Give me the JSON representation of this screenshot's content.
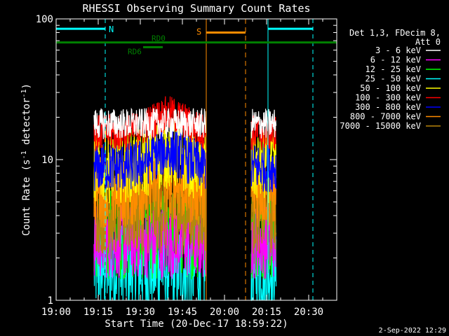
{
  "chart_data": {
    "type": "line",
    "title": "RHESSI Observing Summary Count Rates",
    "xlabel": "Start Time (20-Dec-17 18:59:22)",
    "ylabel": "Count Rate (s⁻¹ detector⁻¹)",
    "ylabel_parts": [
      "Count Rate (s",
      "-1",
      " detector",
      "-1",
      ")"
    ],
    "x_ticks": [
      "19:00",
      "19:15",
      "19:30",
      "19:45",
      "20:00",
      "20:15",
      "20:30"
    ],
    "x_tick_minutes": [
      0,
      15,
      30,
      45,
      60,
      75,
      90
    ],
    "xlim_minutes": [
      0,
      100
    ],
    "y_ticks": [
      "1",
      "10",
      "100"
    ],
    "y_tick_values": [
      1,
      10,
      100
    ],
    "ylim": [
      1,
      100
    ],
    "y_scale": "log",
    "legend_header": [
      "Det 1,3, FDecim 8,",
      "Att 0"
    ],
    "legend_placement": "right",
    "footer": "2-Sep-2022 12:29",
    "data_segments_minutes": [
      [
        13.5,
        53.5
      ],
      [
        69.5,
        78.5
      ]
    ],
    "series": [
      {
        "name": "3 - 6 keV",
        "color": "#ffffff",
        "base": 18.0,
        "spread": 0.05,
        "peak": 1.0
      },
      {
        "name": "6 - 12 keV",
        "color": "#ff00ff",
        "base": 2.6,
        "spread": 0.12,
        "peak": 1.0
      },
      {
        "name": "12 - 25 keV",
        "color": "#00ff00",
        "base": 3.0,
        "spread": 0.15,
        "peak": 1.0
      },
      {
        "name": "25 - 50 keV",
        "color": "#00ffff",
        "base": 1.7,
        "spread": 0.15,
        "peak": 1.0
      },
      {
        "name": "50 - 100 keV",
        "color": "#ffff00",
        "base": 9.0,
        "spread": 0.12,
        "peak": 1.25
      },
      {
        "name": "100 - 300 keV",
        "color": "#ff0000",
        "base": 15.5,
        "spread": 0.06,
        "peak": 1.35
      },
      {
        "name": "300 - 800 keV",
        "color": "#0000ff",
        "base": 8.8,
        "spread": 0.08,
        "peak": 1.3
      },
      {
        "name": "800 - 7000 keV",
        "color": "#ff8c00",
        "base": 6.0,
        "spread": 0.12,
        "peak": 1.15
      },
      {
        "name": "7000 - 15000 keV",
        "color": "#b8860b",
        "base": 4.5,
        "spread": 0.15,
        "peak": 1.0
      }
    ],
    "annotations": {
      "night": {
        "label": "N",
        "color": "#00ffff",
        "level": 85,
        "intervals_minutes": [
          [
            0,
            17.5
          ],
          [
            75.5,
            91.5
          ]
        ],
        "markers_minutes": [
          0,
          17.5,
          75.5,
          91.5
        ]
      },
      "saa": {
        "label": "S",
        "color": "#ff8c00",
        "level": 80,
        "interval_minutes": [
          53.5,
          67.5
        ]
      },
      "rd0": {
        "label": "RD0",
        "color": "#008000",
        "level": 68,
        "interval_minutes": [
          0,
          100
        ]
      },
      "rd6": {
        "label": "RD6",
        "color": "#008000",
        "level": 63,
        "interval_minutes": [
          31,
          38
        ]
      }
    }
  }
}
